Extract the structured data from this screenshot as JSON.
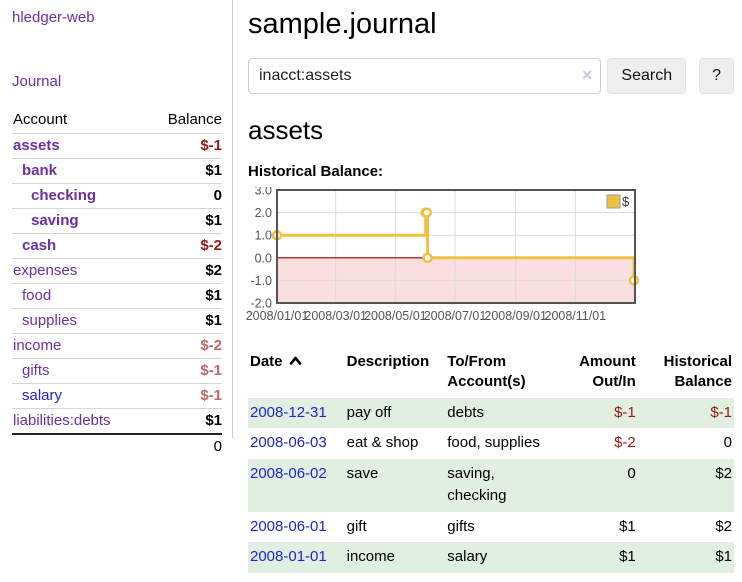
{
  "app": {
    "title": "hledger-web"
  },
  "nav": {
    "journal": "Journal"
  },
  "sidebar": {
    "header": {
      "account": "Account",
      "balance": "Balance"
    },
    "accounts": [
      {
        "name": "assets",
        "depth": 1,
        "balance": "$-1",
        "selected": true,
        "balance_style": "neg-strong",
        "link_style": "purple"
      },
      {
        "name": "bank",
        "depth": 2,
        "balance": "$1",
        "selected": true,
        "balance_style": "plain",
        "link_style": "purple"
      },
      {
        "name": "checking",
        "depth": 3,
        "balance": "0",
        "selected": true,
        "balance_style": "plain",
        "link_style": "purple"
      },
      {
        "name": "saving",
        "depth": 3,
        "balance": "$1",
        "selected": true,
        "balance_style": "plain",
        "link_style": "purple"
      },
      {
        "name": "cash",
        "depth": 2,
        "balance": "$-2",
        "selected": true,
        "balance_style": "neg-strong",
        "link_style": "purple"
      },
      {
        "name": "expenses",
        "depth": 1,
        "balance": "$2",
        "selected": false,
        "balance_style": "plain",
        "link_style": "purple"
      },
      {
        "name": "food",
        "depth": 2,
        "balance": "$1",
        "selected": false,
        "balance_style": "plain",
        "link_style": "purple"
      },
      {
        "name": "supplies",
        "depth": 2,
        "balance": "$1",
        "selected": false,
        "balance_style": "plain",
        "link_style": "purple"
      },
      {
        "name": "income",
        "depth": 1,
        "balance": "$-2",
        "selected": false,
        "balance_style": "neg-muted",
        "link_style": "purple"
      },
      {
        "name": "gifts",
        "depth": 2,
        "balance": "$-1",
        "selected": false,
        "balance_style": "neg-muted",
        "link_style": "purple"
      },
      {
        "name": "salary",
        "depth": 2,
        "balance": "$-1",
        "selected": false,
        "balance_style": "neg-muted",
        "link_style": "blue"
      },
      {
        "name": "liabilities:debts",
        "depth": 1,
        "balance": "$1",
        "selected": false,
        "balance_style": "plain",
        "link_style": "purple"
      }
    ],
    "total": "0"
  },
  "main": {
    "title": "sample.journal",
    "search": {
      "value": "inacct:assets",
      "clear_icon": "×",
      "search_button": "Search",
      "help_button": "?"
    },
    "account_heading": "assets",
    "section_label": "Historical Balance:"
  },
  "chart_data": {
    "type": "line",
    "title": "Historical Balance:",
    "step_line": true,
    "series": [
      {
        "name": "$",
        "points": [
          [
            "2008-01-01",
            1
          ],
          [
            "2008-06-01",
            2
          ],
          [
            "2008-06-02",
            2
          ],
          [
            "2008-06-03",
            0
          ],
          [
            "2008-12-31",
            -1
          ]
        ]
      }
    ],
    "x_range": [
      "2008-01-01",
      "2009-01-01"
    ],
    "x_ticks": [
      "2008/01/01",
      "2008/03/01",
      "2008/05/01",
      "2008/07/01",
      "2008/09/01",
      "2008/11/01"
    ],
    "ylim": [
      -2,
      3
    ],
    "y_tick_step": 1,
    "y_tick_labels": [
      "3.0",
      "2.0",
      "1.0",
      "0.0",
      "-1.0",
      "-2.0"
    ],
    "grid": true,
    "line_color": "#edc240",
    "marker_fill": "#ffffff",
    "negative_region_color": "#fbdede",
    "zero_line_color": "#8b0000",
    "grid_color": "#dcdcdc",
    "border_color": "#545454",
    "legend": {
      "label": "$",
      "position": "top-right"
    }
  },
  "register": {
    "header": {
      "date": "Date",
      "description": "Description",
      "accounts": "To/From Account(s)",
      "amount": "Amount Out/In",
      "balance": "Historical Balance"
    },
    "rows": [
      {
        "date": "2008-12-31",
        "description": "pay off",
        "accounts": "debts",
        "amount": "$-1",
        "amount_neg": true,
        "balance": "$-1",
        "balance_neg": true
      },
      {
        "date": "2008-06-03",
        "description": "eat & shop",
        "accounts": "food, supplies",
        "amount": "$-2",
        "amount_neg": true,
        "balance": "0",
        "balance_neg": false
      },
      {
        "date": "2008-06-02",
        "description": "save",
        "accounts": "saving, checking",
        "amount": "0",
        "amount_neg": false,
        "balance": "$2",
        "balance_neg": false
      },
      {
        "date": "2008-06-01",
        "description": "gift",
        "accounts": "gifts",
        "amount": "$1",
        "amount_neg": false,
        "balance": "$2",
        "balance_neg": false
      },
      {
        "date": "2008-01-01",
        "description": "income",
        "accounts": "salary",
        "amount": "$1",
        "amount_neg": false,
        "balance": "$1",
        "balance_neg": false
      }
    ]
  },
  "colors": {
    "link_purple": "#6a2fa0",
    "link_blue": "#2222cc",
    "negative_strong": "#971717",
    "negative_muted": "#bd6a6a",
    "row_stripe_green": "#e1efe0",
    "chart_line_gold": "#edc240"
  }
}
